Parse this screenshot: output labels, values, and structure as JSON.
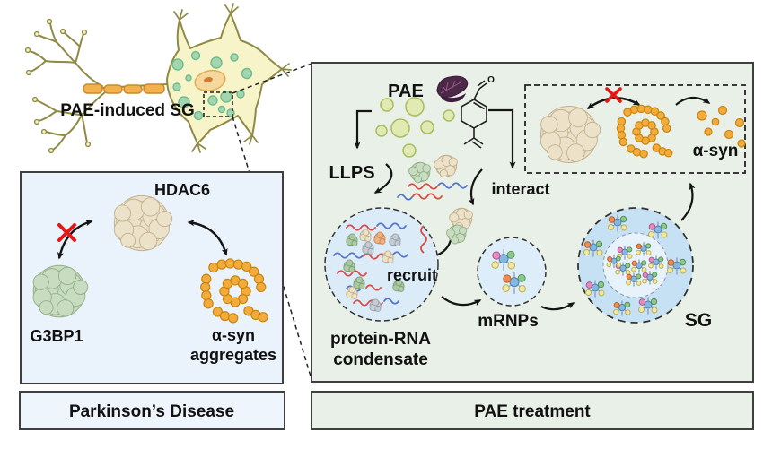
{
  "neuron": {
    "caption": "PAE-induced SG"
  },
  "pd_box": {
    "hdac6_label": "HDAC6",
    "g3bp1_label": "G3BP1",
    "asyn_label_line1": "α-syn",
    "asyn_label_line2": "aggregates",
    "footer_label": "Parkinson’s Disease"
  },
  "pae_box": {
    "pae_label": "PAE",
    "llps_label": "LLPS",
    "interact_label": "interact",
    "recruit_label": "recruit",
    "condensate_label_line1": "protein-RNA",
    "condensate_label_line2": "condensate",
    "mrnps_label": "mRNPs",
    "sg_label": "SG",
    "asyn_label": "α-syn",
    "aldehyde_oxygen": "O",
    "footer_label": "PAE treatment"
  },
  "icons": [
    "neuron-icon",
    "stress-granule-dot-icon",
    "myelin-segment-icon",
    "nucleus-icon",
    "perilla-leaf-icon",
    "perillaldehyde-structure-icon",
    "droplet-icon",
    "protein-blob-icon",
    "rna-wave-icon",
    "alpha-syn-aggregate-icon",
    "alpha-syn-monomer-icon",
    "mrnp-complex-icon",
    "red-cross-icon",
    "curved-arrow-icon",
    "dashed-callout-icon"
  ],
  "colors": {
    "text": "#111111",
    "border": "#3f3f3f",
    "arrow": "#141414",
    "cross_red": "#e51616",
    "panel_blue": "#eaf2fb",
    "panel_green": "#e9f0e7",
    "neuron_body": "#f8f4c9",
    "neuron_stroke": "#8f8a45",
    "myelin": "#f2b14d",
    "myelin_stroke": "#c9892c",
    "sg_dot": "#a3d6b0",
    "sg_dot_stroke": "#6dbd8b",
    "nucleus": "#f6d79c",
    "nucleus_stroke": "#e0ab55",
    "nucleolus": "#cf7a35",
    "leaf": "#4e2847",
    "leaf_dark": "#3f1f3b",
    "leaf_vein": "#9a6292",
    "droplet": "#e0eab2",
    "droplet_stroke": "#a9bc60",
    "condensate_fill": "#dcebf8",
    "sg_outer_fill": "#c7e1f4",
    "sg_inner_fill": "#e7f2fb",
    "protein_beige": "#ece1c9",
    "protein_beige_stroke": "#c3b28e",
    "protein_green": "#c8dcc0",
    "protein_green_stroke": "#94b18a",
    "blob_green": "#abc9a4",
    "blob_green_stroke": "#7fa377",
    "blob_orange": "#f0b183",
    "blob_orange_stroke": "#cd8a52",
    "blob_gray": "#c6ccd4",
    "blob_gray_stroke": "#9aa3ae",
    "asyn_orange": "#f3ab3c",
    "asyn_stroke": "#c8860f",
    "rna_red": "#d94b42",
    "rna_blue": "#5374c8",
    "mrnp_blue": "#84b8e2",
    "mrnp_blue_stroke": "#4b7fae",
    "mrnp_green": "#8cc78c",
    "mrnp_green_stroke": "#579157",
    "mrnp_pink": "#e58cbd",
    "mrnp_pink_stroke": "#b2558c",
    "mrnp_orange": "#ee8c4f",
    "mrnp_orange_stroke": "#bd5f28",
    "mrnp_yellow": "#f1e9a2",
    "mrnp_yellow_stroke": "#bdae56",
    "mrnp_tail": "#6f87a3"
  }
}
